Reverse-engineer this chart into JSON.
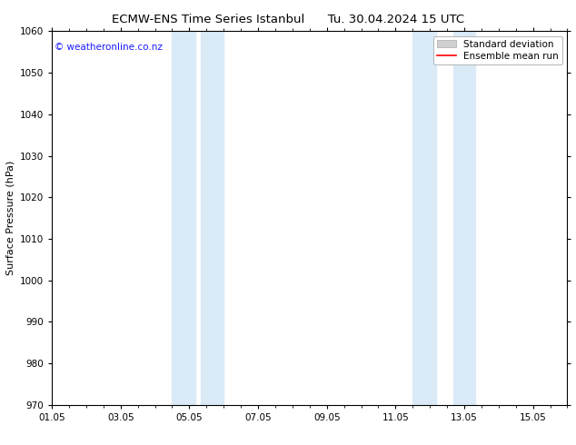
{
  "title_left": "ECMW-ENS Time Series Istanbul",
  "title_right": "Tu. 30.04.2024 15 UTC",
  "ylabel": "Surface Pressure (hPa)",
  "ylim": [
    970,
    1060
  ],
  "yticks": [
    970,
    980,
    990,
    1000,
    1010,
    1020,
    1030,
    1040,
    1050,
    1060
  ],
  "xlim": [
    0,
    15
  ],
  "xtick_labels": [
    "01.05",
    "03.05",
    "05.05",
    "07.05",
    "09.05",
    "11.05",
    "13.05",
    "15.05"
  ],
  "xtick_positions": [
    0,
    2,
    4,
    6,
    8,
    10,
    12,
    14
  ],
  "shaded_bands": [
    {
      "x_start": 3.33,
      "x_end": 3.83,
      "color": "#daeaf7"
    },
    {
      "x_start": 3.83,
      "x_end": 4.67,
      "color": "#daeaf7"
    },
    {
      "x_start": 4.67,
      "x_end": 5.17,
      "color": "#daeaf7"
    },
    {
      "x_start": 10.33,
      "x_end": 10.83,
      "color": "#daeaf7"
    },
    {
      "x_start": 10.83,
      "x_end": 12.17,
      "color": "#daeaf7"
    },
    {
      "x_start": 12.17,
      "x_end": 12.67,
      "color": "#daeaf7"
    }
  ],
  "band_pairs": [
    {
      "x_start": 3.5,
      "x_end": 5.17,
      "color": "#daeaf7"
    },
    {
      "x_start": 10.5,
      "x_end": 12.5,
      "color": "#daeaf7"
    }
  ],
  "copyright_text": "© weatheronline.co.nz",
  "copyright_color": "#1a1aff",
  "background_color": "#ffffff",
  "legend_std_color": "#d0d0d0",
  "legend_mean_color": "#ff0000",
  "title_fontsize": 9.5,
  "ylabel_fontsize": 8,
  "tick_fontsize": 7.5,
  "copyright_fontsize": 7.5,
  "legend_fontsize": 7.5
}
